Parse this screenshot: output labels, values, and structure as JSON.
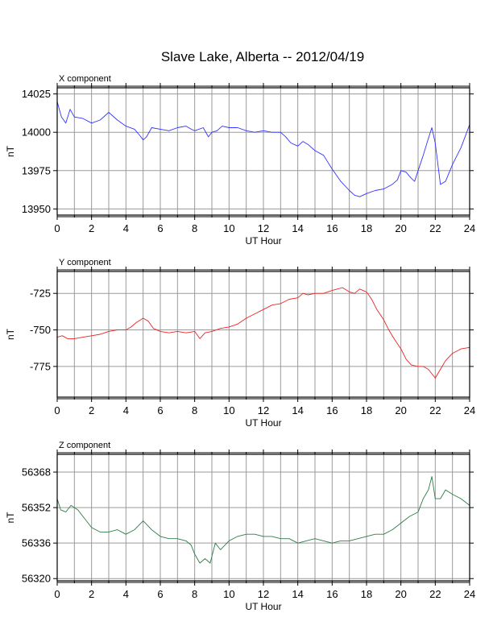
{
  "chart_data": {
    "title": "Slave Lake, Alberta -- 2012/04/19",
    "panels": [
      {
        "type": "line",
        "title": "X component",
        "xlabel": "UT Hour",
        "ylabel": "nT",
        "xlim": [
          0,
          24
        ],
        "ylim": [
          13946,
          14029
        ],
        "xticks": [
          0,
          2,
          4,
          6,
          8,
          10,
          12,
          14,
          16,
          18,
          20,
          22,
          24
        ],
        "yticks": [
          13950,
          13975,
          14000,
          14025
        ],
        "color": "#3333ff",
        "grid": true,
        "series": [
          {
            "x": [
              0,
              0.25,
              0.5,
              0.75,
              1,
              1.5,
              2,
              2.5,
              3,
              3.5,
              4,
              4.5,
              4.8,
              5,
              5.2,
              5.5,
              6,
              6.5,
              7,
              7.5,
              7.8,
              8,
              8.5,
              8.8,
              9,
              9.3,
              9.6,
              10,
              10.5,
              11,
              11.5,
              12,
              12.5,
              13,
              13.3,
              13.6,
              14,
              14.3,
              14.6,
              15,
              15.5,
              16,
              16.5,
              17,
              17.3,
              17.6,
              18,
              18.5,
              19,
              19.5,
              19.8,
              20,
              20.3,
              20.6,
              20.8,
              21,
              21.3,
              21.6,
              21.8,
              22,
              22.3,
              22.6,
              23,
              23.5,
              24
            ],
            "values": [
              14020,
              14010,
              14006,
              14015,
              14010,
              14009,
              14006,
              14008,
              14013,
              14008,
              14004,
              14002,
              13998,
              13995,
              13997,
              14003,
              14002,
              14001,
              14003,
              14004,
              14002,
              14001,
              14003,
              13997,
              14000,
              14001,
              14004,
              14003,
              14003,
              14001,
              14000,
              14001,
              14000,
              14000,
              13997,
              13993,
              13991,
              13994,
              13992,
              13988,
              13985,
              13976,
              13968,
              13962,
              13959,
              13958,
              13960,
              13962,
              13963,
              13966,
              13969,
              13975,
              13974,
              13970,
              13968,
              13975,
              13985,
              13996,
              14003,
              13993,
              13966,
              13968,
              13979,
              13990,
              14005
            ]
          }
        ]
      },
      {
        "type": "line",
        "title": "Y component",
        "xlabel": "UT Hour",
        "ylabel": "nT",
        "xlim": [
          0,
          24
        ],
        "ylim": [
          -796,
          -710
        ],
        "xticks": [
          0,
          2,
          4,
          6,
          8,
          10,
          12,
          14,
          16,
          18,
          20,
          22,
          24
        ],
        "yticks": [
          -725,
          -750,
          -775
        ],
        "color": "#ee2222",
        "grid": true,
        "series": [
          {
            "x": [
              0,
              0.3,
              0.6,
              1,
              1.5,
              2,
              2.5,
              3,
              3.5,
              4,
              4.3,
              4.6,
              5,
              5.3,
              5.6,
              6,
              6.5,
              7,
              7.5,
              8,
              8.3,
              8.6,
              9,
              9.5,
              10,
              10.5,
              11,
              11.5,
              12,
              12.5,
              13,
              13.5,
              14,
              14.3,
              14.6,
              15,
              15.5,
              16,
              16.3,
              16.6,
              17,
              17.3,
              17.6,
              18,
              18.3,
              18.6,
              19,
              19.3,
              19.6,
              20,
              20.3,
              20.6,
              21,
              21.3,
              21.6,
              22,
              22.3,
              22.6,
              23,
              23.5,
              24
            ],
            "values": [
              -755,
              -754,
              -756,
              -756,
              -755,
              -754,
              -753,
              -751,
              -750,
              -750,
              -748,
              -745,
              -742,
              -744,
              -749,
              -751,
              -752,
              -751,
              -752,
              -751,
              -756,
              -752,
              -751,
              -749,
              -748,
              -746,
              -742,
              -739,
              -736,
              -733,
              -732,
              -729,
              -728,
              -725,
              -726,
              -725,
              -725,
              -723,
              -722,
              -721,
              -724,
              -725,
              -722,
              -724,
              -729,
              -736,
              -743,
              -750,
              -756,
              -763,
              -770,
              -774,
              -775,
              -775,
              -777,
              -783,
              -777,
              -771,
              -766,
              -763,
              -762
            ]
          }
        ]
      },
      {
        "type": "line",
        "title": "Z component",
        "xlabel": "UT Hour",
        "ylabel": "nT",
        "xlim": [
          0,
          24
        ],
        "ylim": [
          56319,
          56376
        ],
        "xticks": [
          0,
          2,
          4,
          6,
          8,
          10,
          12,
          14,
          16,
          18,
          20,
          22,
          24
        ],
        "yticks": [
          56320,
          56336,
          56352,
          56368
        ],
        "color": "#2e7d45",
        "grid": true,
        "series": [
          {
            "x": [
              0,
              0.2,
              0.5,
              0.8,
              1.2,
              1.5,
              2,
              2.5,
              3,
              3.5,
              4,
              4.5,
              5,
              5.5,
              6,
              6.5,
              7,
              7.5,
              7.8,
              8,
              8.3,
              8.6,
              8.9,
              9.2,
              9.5,
              10,
              10.5,
              11,
              11.5,
              12,
              12.5,
              13,
              13.5,
              14,
              14.5,
              15,
              15.5,
              16,
              16.5,
              17,
              17.5,
              18,
              18.5,
              19,
              19.5,
              20,
              20.5,
              21,
              21.3,
              21.6,
              21.8,
              22,
              22.3,
              22.6,
              23,
              23.5,
              24
            ],
            "values": [
              56356,
              56351,
              56350,
              56353,
              56351,
              56348,
              56343,
              56341,
              56341,
              56342,
              56340,
              56342,
              56346,
              56342,
              56339,
              56338,
              56338,
              56337,
              56335,
              56331,
              56327,
              56329,
              56327,
              56336,
              56333,
              56337,
              56339,
              56340,
              56340,
              56339,
              56339,
              56338,
              56338,
              56336,
              56337,
              56338,
              56337,
              56336,
              56337,
              56337,
              56338,
              56339,
              56340,
              56340,
              56342,
              56345,
              56348,
              56350,
              56356,
              56360,
              56366,
              56356,
              56356,
              56360,
              56358,
              56356,
              56353
            ]
          }
        ]
      }
    ]
  }
}
